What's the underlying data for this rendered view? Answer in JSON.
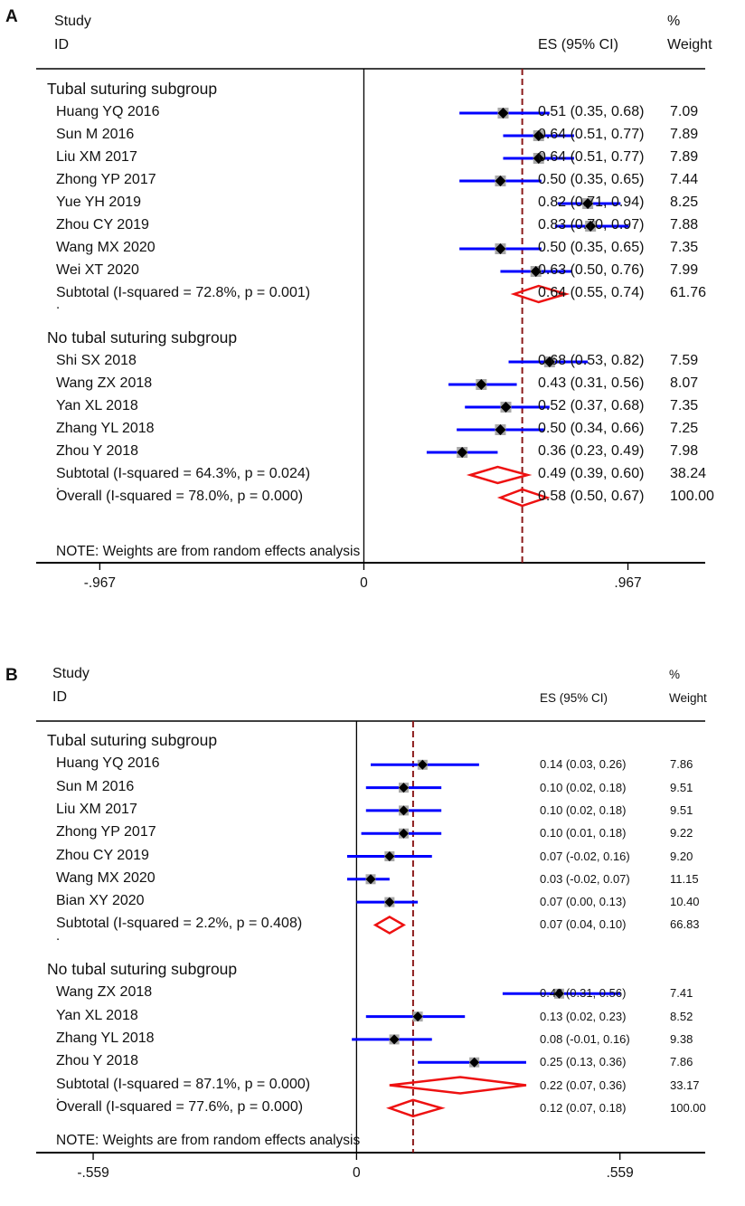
{
  "colors": {
    "ci_line": "#0000ff",
    "diamond": "#ee1111",
    "ref_line": "#8b1a1a",
    "box": "#a8a8a8",
    "axis": "#000000"
  },
  "chart_data": [
    {
      "type": "forest",
      "panel_label": "A",
      "header": {
        "study": "Study",
        "id": "ID",
        "es": "ES (95% CI)",
        "pct": "%",
        "weight": "Weight"
      },
      "xlim": [
        -1.2,
        1.25
      ],
      "ticks": [
        {
          "value": -0.967,
          "label": "-.967"
        },
        {
          "value": 0,
          "label": "0"
        },
        {
          "value": 0.967,
          "label": ".967"
        }
      ],
      "overall_line": 0.58,
      "subgroups": [
        {
          "name": "Tubal suturing subgroup",
          "studies": [
            {
              "study": "Huang YQ 2016",
              "es": 0.51,
              "lo": 0.35,
              "hi": 0.68,
              "es_text": "0.51 (0.35, 0.68)",
              "weight": "7.09"
            },
            {
              "study": "Sun M 2016",
              "es": 0.64,
              "lo": 0.51,
              "hi": 0.77,
              "es_text": "0.64 (0.51, 0.77)",
              "weight": "7.89"
            },
            {
              "study": "Liu XM 2017",
              "es": 0.64,
              "lo": 0.51,
              "hi": 0.77,
              "es_text": "0.64 (0.51, 0.77)",
              "weight": "7.89"
            },
            {
              "study": "Zhong YP 2017",
              "es": 0.5,
              "lo": 0.35,
              "hi": 0.65,
              "es_text": "0.50 (0.35, 0.65)",
              "weight": "7.44"
            },
            {
              "study": "Yue YH 2019",
              "es": 0.82,
              "lo": 0.71,
              "hi": 0.94,
              "es_text": "0.82 (0.71, 0.94)",
              "weight": "8.25"
            },
            {
              "study": "Zhou CY 2019",
              "es": 0.83,
              "lo": 0.7,
              "hi": 0.97,
              "es_text": "0.83 (0.70, 0.97)",
              "weight": "7.88"
            },
            {
              "study": "Wang MX 2020",
              "es": 0.5,
              "lo": 0.35,
              "hi": 0.65,
              "es_text": "0.50 (0.35, 0.65)",
              "weight": "7.35"
            },
            {
              "study": "Wei XT 2020",
              "es": 0.63,
              "lo": 0.5,
              "hi": 0.76,
              "es_text": "0.63 (0.50, 0.76)",
              "weight": "7.99"
            }
          ],
          "subtotal": {
            "label": "Subtotal  (I-squared = 72.8%, p = 0.001)",
            "es": 0.64,
            "lo": 0.55,
            "hi": 0.74,
            "es_text": "0.64 (0.55, 0.74)",
            "weight": "61.76"
          }
        },
        {
          "name": "No tubal suturing subgroup",
          "studies": [
            {
              "study": "Shi SX 2018",
              "es": 0.68,
              "lo": 0.53,
              "hi": 0.82,
              "es_text": "0.68 (0.53, 0.82)",
              "weight": "7.59"
            },
            {
              "study": "Wang ZX 2018",
              "es": 0.43,
              "lo": 0.31,
              "hi": 0.56,
              "es_text": "0.43 (0.31, 0.56)",
              "weight": "8.07"
            },
            {
              "study": "Yan XL 2018",
              "es": 0.52,
              "lo": 0.37,
              "hi": 0.68,
              "es_text": "0.52 (0.37, 0.68)",
              "weight": "7.35"
            },
            {
              "study": "Zhang YL 2018",
              "es": 0.5,
              "lo": 0.34,
              "hi": 0.66,
              "es_text": "0.50 (0.34, 0.66)",
              "weight": "7.25"
            },
            {
              "study": "Zhou Y 2018",
              "es": 0.36,
              "lo": 0.23,
              "hi": 0.49,
              "es_text": "0.36 (0.23, 0.49)",
              "weight": "7.98"
            }
          ],
          "subtotal": {
            "label": "Subtotal  (I-squared = 64.3%, p = 0.024)",
            "es": 0.49,
            "lo": 0.39,
            "hi": 0.6,
            "es_text": "0.49 (0.39, 0.60)",
            "weight": "38.24"
          }
        }
      ],
      "overall": {
        "label": "Overall  (I-squared = 78.0%, p = 0.000)",
        "es": 0.58,
        "lo": 0.5,
        "hi": 0.67,
        "es_text": "0.58 (0.50, 0.67)",
        "weight": "100.00"
      },
      "separator": ".",
      "note": "NOTE: Weights are from random effects analysis"
    },
    {
      "type": "forest",
      "panel_label": "B",
      "header": {
        "study": "Study",
        "id": "ID",
        "es": "ES (95% CI)",
        "pct": "%",
        "weight": "Weight"
      },
      "xlim": [
        -0.68,
        0.74
      ],
      "ticks": [
        {
          "value": -0.559,
          "label": "-.559"
        },
        {
          "value": 0,
          "label": "0"
        },
        {
          "value": 0.559,
          "label": ".559"
        }
      ],
      "overall_line": 0.12,
      "subgroups": [
        {
          "name": "Tubal suturing subgroup",
          "studies": [
            {
              "study": "Huang YQ 2016",
              "es": 0.14,
              "lo": 0.03,
              "hi": 0.26,
              "es_text": "0.14 (0.03, 0.26)",
              "weight": "7.86"
            },
            {
              "study": "Sun M 2016",
              "es": 0.1,
              "lo": 0.02,
              "hi": 0.18,
              "es_text": "0.10 (0.02, 0.18)",
              "weight": "9.51"
            },
            {
              "study": "Liu XM 2017",
              "es": 0.1,
              "lo": 0.02,
              "hi": 0.18,
              "es_text": "0.10 (0.02, 0.18)",
              "weight": "9.51"
            },
            {
              "study": "Zhong YP 2017",
              "es": 0.1,
              "lo": 0.01,
              "hi": 0.18,
              "es_text": "0.10 (0.01, 0.18)",
              "weight": "9.22"
            },
            {
              "study": "Zhou CY 2019",
              "es": 0.07,
              "lo": -0.02,
              "hi": 0.16,
              "es_text": "0.07 (-0.02, 0.16)",
              "weight": "9.20"
            },
            {
              "study": "Wang MX 2020",
              "es": 0.03,
              "lo": -0.02,
              "hi": 0.07,
              "es_text": "0.03 (-0.02, 0.07)",
              "weight": "11.15"
            },
            {
              "study": "Bian XY 2020",
              "es": 0.07,
              "lo": 0.0,
              "hi": 0.13,
              "es_text": "0.07 (0.00, 0.13)",
              "weight": "10.40"
            }
          ],
          "subtotal": {
            "label": "Subtotal  (I-squared = 2.2%, p = 0.408)",
            "es": 0.07,
            "lo": 0.04,
            "hi": 0.1,
            "es_text": "0.07 (0.04, 0.10)",
            "weight": "66.83"
          }
        },
        {
          "name": "No tubal suturing subgroup",
          "studies": [
            {
              "study": "Wang ZX 2018",
              "es": 0.43,
              "lo": 0.31,
              "hi": 0.56,
              "es_text": "0.43 (0.31, 0.56)",
              "weight": "7.41"
            },
            {
              "study": "Yan XL 2018",
              "es": 0.13,
              "lo": 0.02,
              "hi": 0.23,
              "es_text": "0.13 (0.02, 0.23)",
              "weight": "8.52"
            },
            {
              "study": "Zhang YL 2018",
              "es": 0.08,
              "lo": -0.01,
              "hi": 0.16,
              "es_text": "0.08 (-0.01, 0.16)",
              "weight": "9.38"
            },
            {
              "study": "Zhou Y 2018",
              "es": 0.25,
              "lo": 0.13,
              "hi": 0.36,
              "es_text": "0.25 (0.13, 0.36)",
              "weight": "7.86"
            }
          ],
          "subtotal": {
            "label": "Subtotal  (I-squared = 87.1%, p = 0.000)",
            "es": 0.22,
            "lo": 0.07,
            "hi": 0.36,
            "es_text": "0.22 (0.07, 0.36)",
            "weight": "33.17"
          }
        }
      ],
      "overall": {
        "label": "Overall  (I-squared = 77.6%, p = 0.000)",
        "es": 0.12,
        "lo": 0.07,
        "hi": 0.18,
        "es_text": "0.12 (0.07, 0.18)",
        "weight": "100.00"
      },
      "separator": ".",
      "note": "NOTE: Weights are from random effects analysis"
    }
  ]
}
